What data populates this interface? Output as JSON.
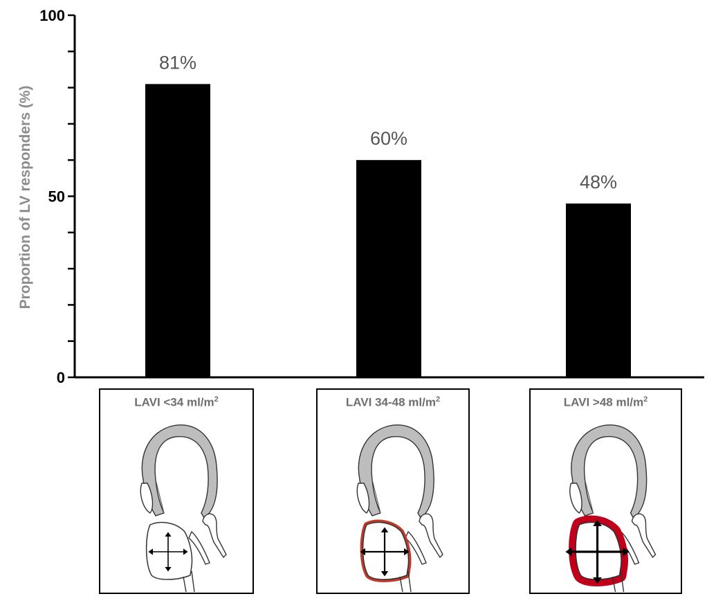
{
  "chart_data": {
    "type": "bar",
    "categories": [
      "LAVI <34 ml/m2",
      "LAVI 34-48 ml/m2",
      "LAVI >48 ml/m2"
    ],
    "values": [
      81,
      60,
      48
    ],
    "data_labels": [
      "81%",
      "60%",
      "48%"
    ],
    "ylabel": "Proportion of LV responders (%)",
    "xlabel": "",
    "ylim": [
      0,
      100
    ],
    "yticks_labeled": [
      "0",
      "50",
      "100"
    ],
    "minor_tick_step": 10,
    "bar_color": "#000000",
    "grid": false
  },
  "panels": [
    {
      "label_main": "LAVI <34 ml/m",
      "label_sup": "2",
      "la_wall": "thin",
      "arrow_scale": "small",
      "highlight": "#ffffff"
    },
    {
      "label_main": "LAVI 34-48 ml/m",
      "label_sup": "2",
      "la_wall": "moderate",
      "arrow_scale": "medium",
      "highlight": "#c0392b"
    },
    {
      "label_main": "LAVI >48 ml/m",
      "label_sup": "2",
      "la_wall": "thick",
      "arrow_scale": "large",
      "highlight": "#c0001a"
    }
  ]
}
